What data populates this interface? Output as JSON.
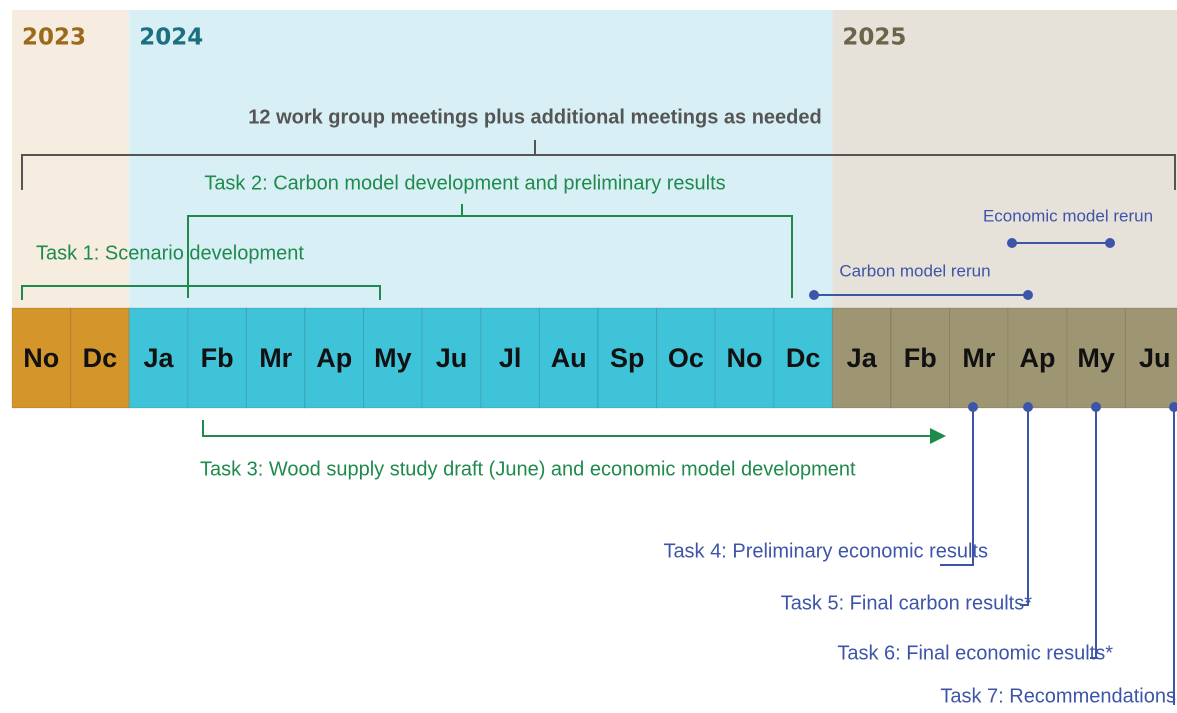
{
  "years": [
    {
      "label": "2023",
      "months": [
        "No",
        "Dc"
      ]
    },
    {
      "label": "2024",
      "months": [
        "Ja",
        "Fb",
        "Mr",
        "Ap",
        "My",
        "Ju",
        "Jl",
        "Au",
        "Sp",
        "Oc",
        "No",
        "Dc"
      ]
    },
    {
      "label": "2025",
      "months": [
        "Ja",
        "Fb",
        "Mr",
        "Ap",
        "My",
        "Ju"
      ]
    }
  ],
  "meetings": "12 work group meetings plus additional meetings as needed",
  "tasks": {
    "task1": "Task 1: Scenario development",
    "task2": "Task 2: Carbon model development and preliminary results",
    "carbon_rerun": "Carbon model rerun",
    "economic_rerun": "Economic model rerun",
    "task3": "Task 3: Wood supply study draft (June) and economic model development",
    "task4": "Task 4: Preliminary economic results",
    "task5": "Task 5: Final carbon results*",
    "task6": "Task 6: Final economic results*",
    "task7": "Task 7: Recommendations"
  }
}
